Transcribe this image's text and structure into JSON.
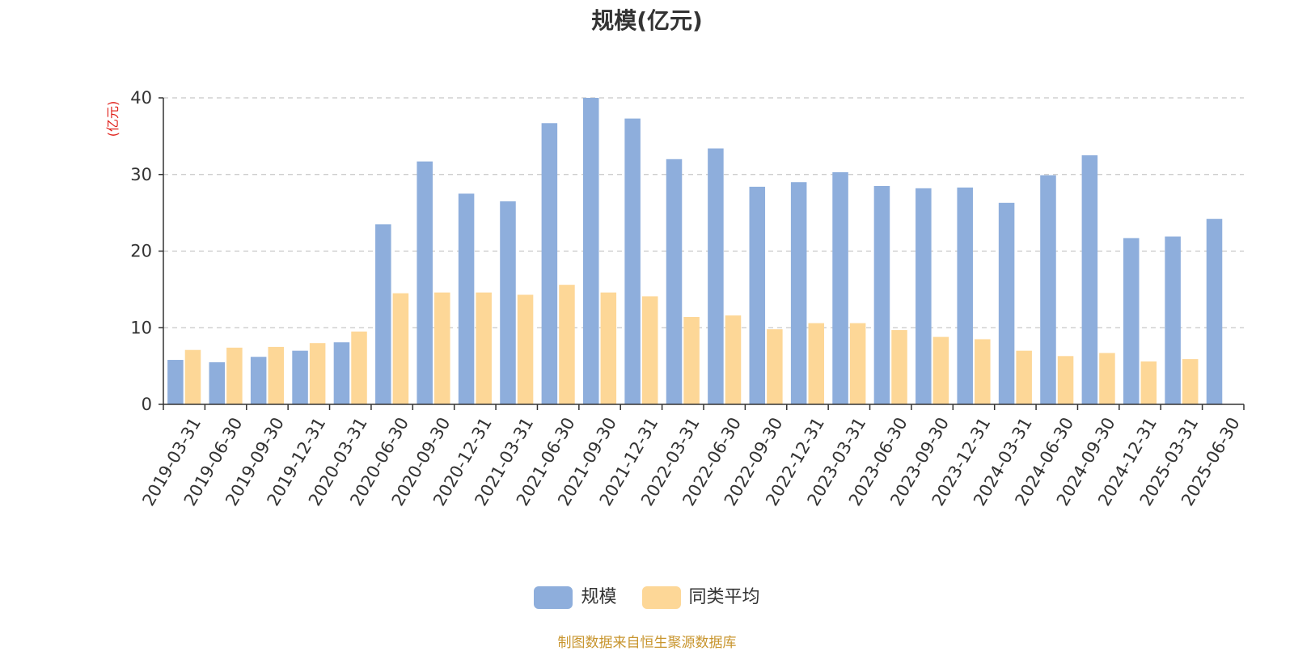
{
  "chart_data": {
    "type": "bar",
    "title": "规模(亿元)",
    "ylabel": "(亿元)",
    "ylim": [
      0,
      40
    ],
    "yticks": [
      0,
      10,
      20,
      30,
      40
    ],
    "grid": true,
    "legend_position": "bottom-center",
    "categories": [
      "2019-03-31",
      "2019-06-30",
      "2019-09-30",
      "2019-12-31",
      "2020-03-31",
      "2020-06-30",
      "2020-09-30",
      "2020-12-31",
      "2021-03-31",
      "2021-06-30",
      "2021-09-30",
      "2021-12-31",
      "2022-03-31",
      "2022-06-30",
      "2022-09-30",
      "2022-12-31",
      "2023-03-31",
      "2023-06-30",
      "2023-09-30",
      "2023-12-31",
      "2024-03-31",
      "2024-06-30",
      "2024-09-30",
      "2024-12-31",
      "2025-03-31",
      "2025-06-30"
    ],
    "series": [
      {
        "name": "规模",
        "color": "#8eaedc",
        "values": [
          5.8,
          5.5,
          6.2,
          7.0,
          8.1,
          23.5,
          31.7,
          27.5,
          26.5,
          36.7,
          40.0,
          37.3,
          32.0,
          33.4,
          28.4,
          29.0,
          30.3,
          28.5,
          28.2,
          28.3,
          26.3,
          29.9,
          32.5,
          21.7,
          21.9,
          24.2
        ]
      },
      {
        "name": "同类平均",
        "color": "#fdd797",
        "values": [
          7.1,
          7.4,
          7.5,
          8.0,
          9.5,
          14.5,
          14.6,
          14.6,
          14.3,
          15.6,
          14.6,
          14.1,
          11.4,
          11.6,
          9.8,
          10.6,
          10.6,
          9.7,
          8.8,
          8.5,
          7.0,
          6.3,
          6.7,
          5.6,
          5.9,
          null
        ]
      }
    ],
    "unit_color": "#e0201a",
    "source_color": "#c8952e"
  },
  "source_text": "制图数据来自恒生聚源数据库"
}
